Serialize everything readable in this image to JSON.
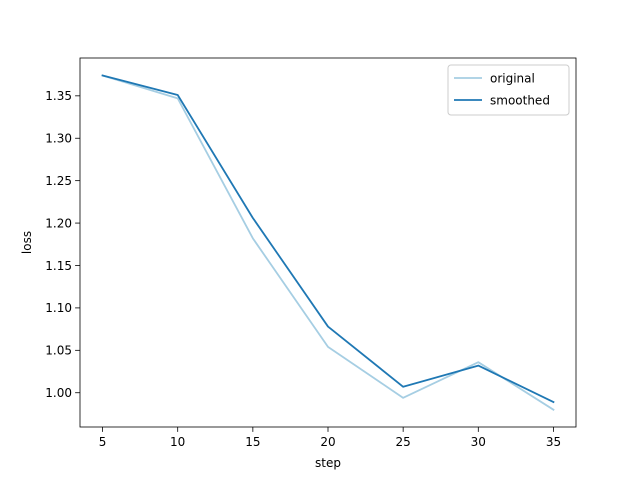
{
  "chart_data": {
    "type": "line",
    "title": "",
    "xlabel": "step",
    "ylabel": "loss",
    "xlim": [
      3.5,
      36.5
    ],
    "ylim": [
      0.9596,
      1.3946
    ],
    "xticks": [
      5,
      10,
      15,
      20,
      25,
      30,
      35
    ],
    "xtick_labels": [
      "5",
      "10",
      "15",
      "20",
      "25",
      "30",
      "35"
    ],
    "yticks": [
      1.0,
      1.05,
      1.1,
      1.15,
      1.2,
      1.25,
      1.3,
      1.35
    ],
    "ytick_labels": [
      "1.00",
      "1.05",
      "1.10",
      "1.15",
      "1.20",
      "1.25",
      "1.30",
      "1.35"
    ],
    "x": [
      5,
      10,
      15,
      20,
      25,
      30,
      35
    ],
    "series": [
      {
        "name": "original",
        "color": "#a6cee3",
        "values": [
          1.374,
          1.347,
          1.182,
          1.054,
          0.994,
          1.036,
          0.98
        ]
      },
      {
        "name": "smoothed",
        "color": "#1f78b4",
        "values": [
          1.374,
          1.351,
          1.206,
          1.078,
          1.007,
          1.032,
          0.989
        ]
      }
    ],
    "legend": {
      "position": "upper right"
    },
    "grid": false
  }
}
